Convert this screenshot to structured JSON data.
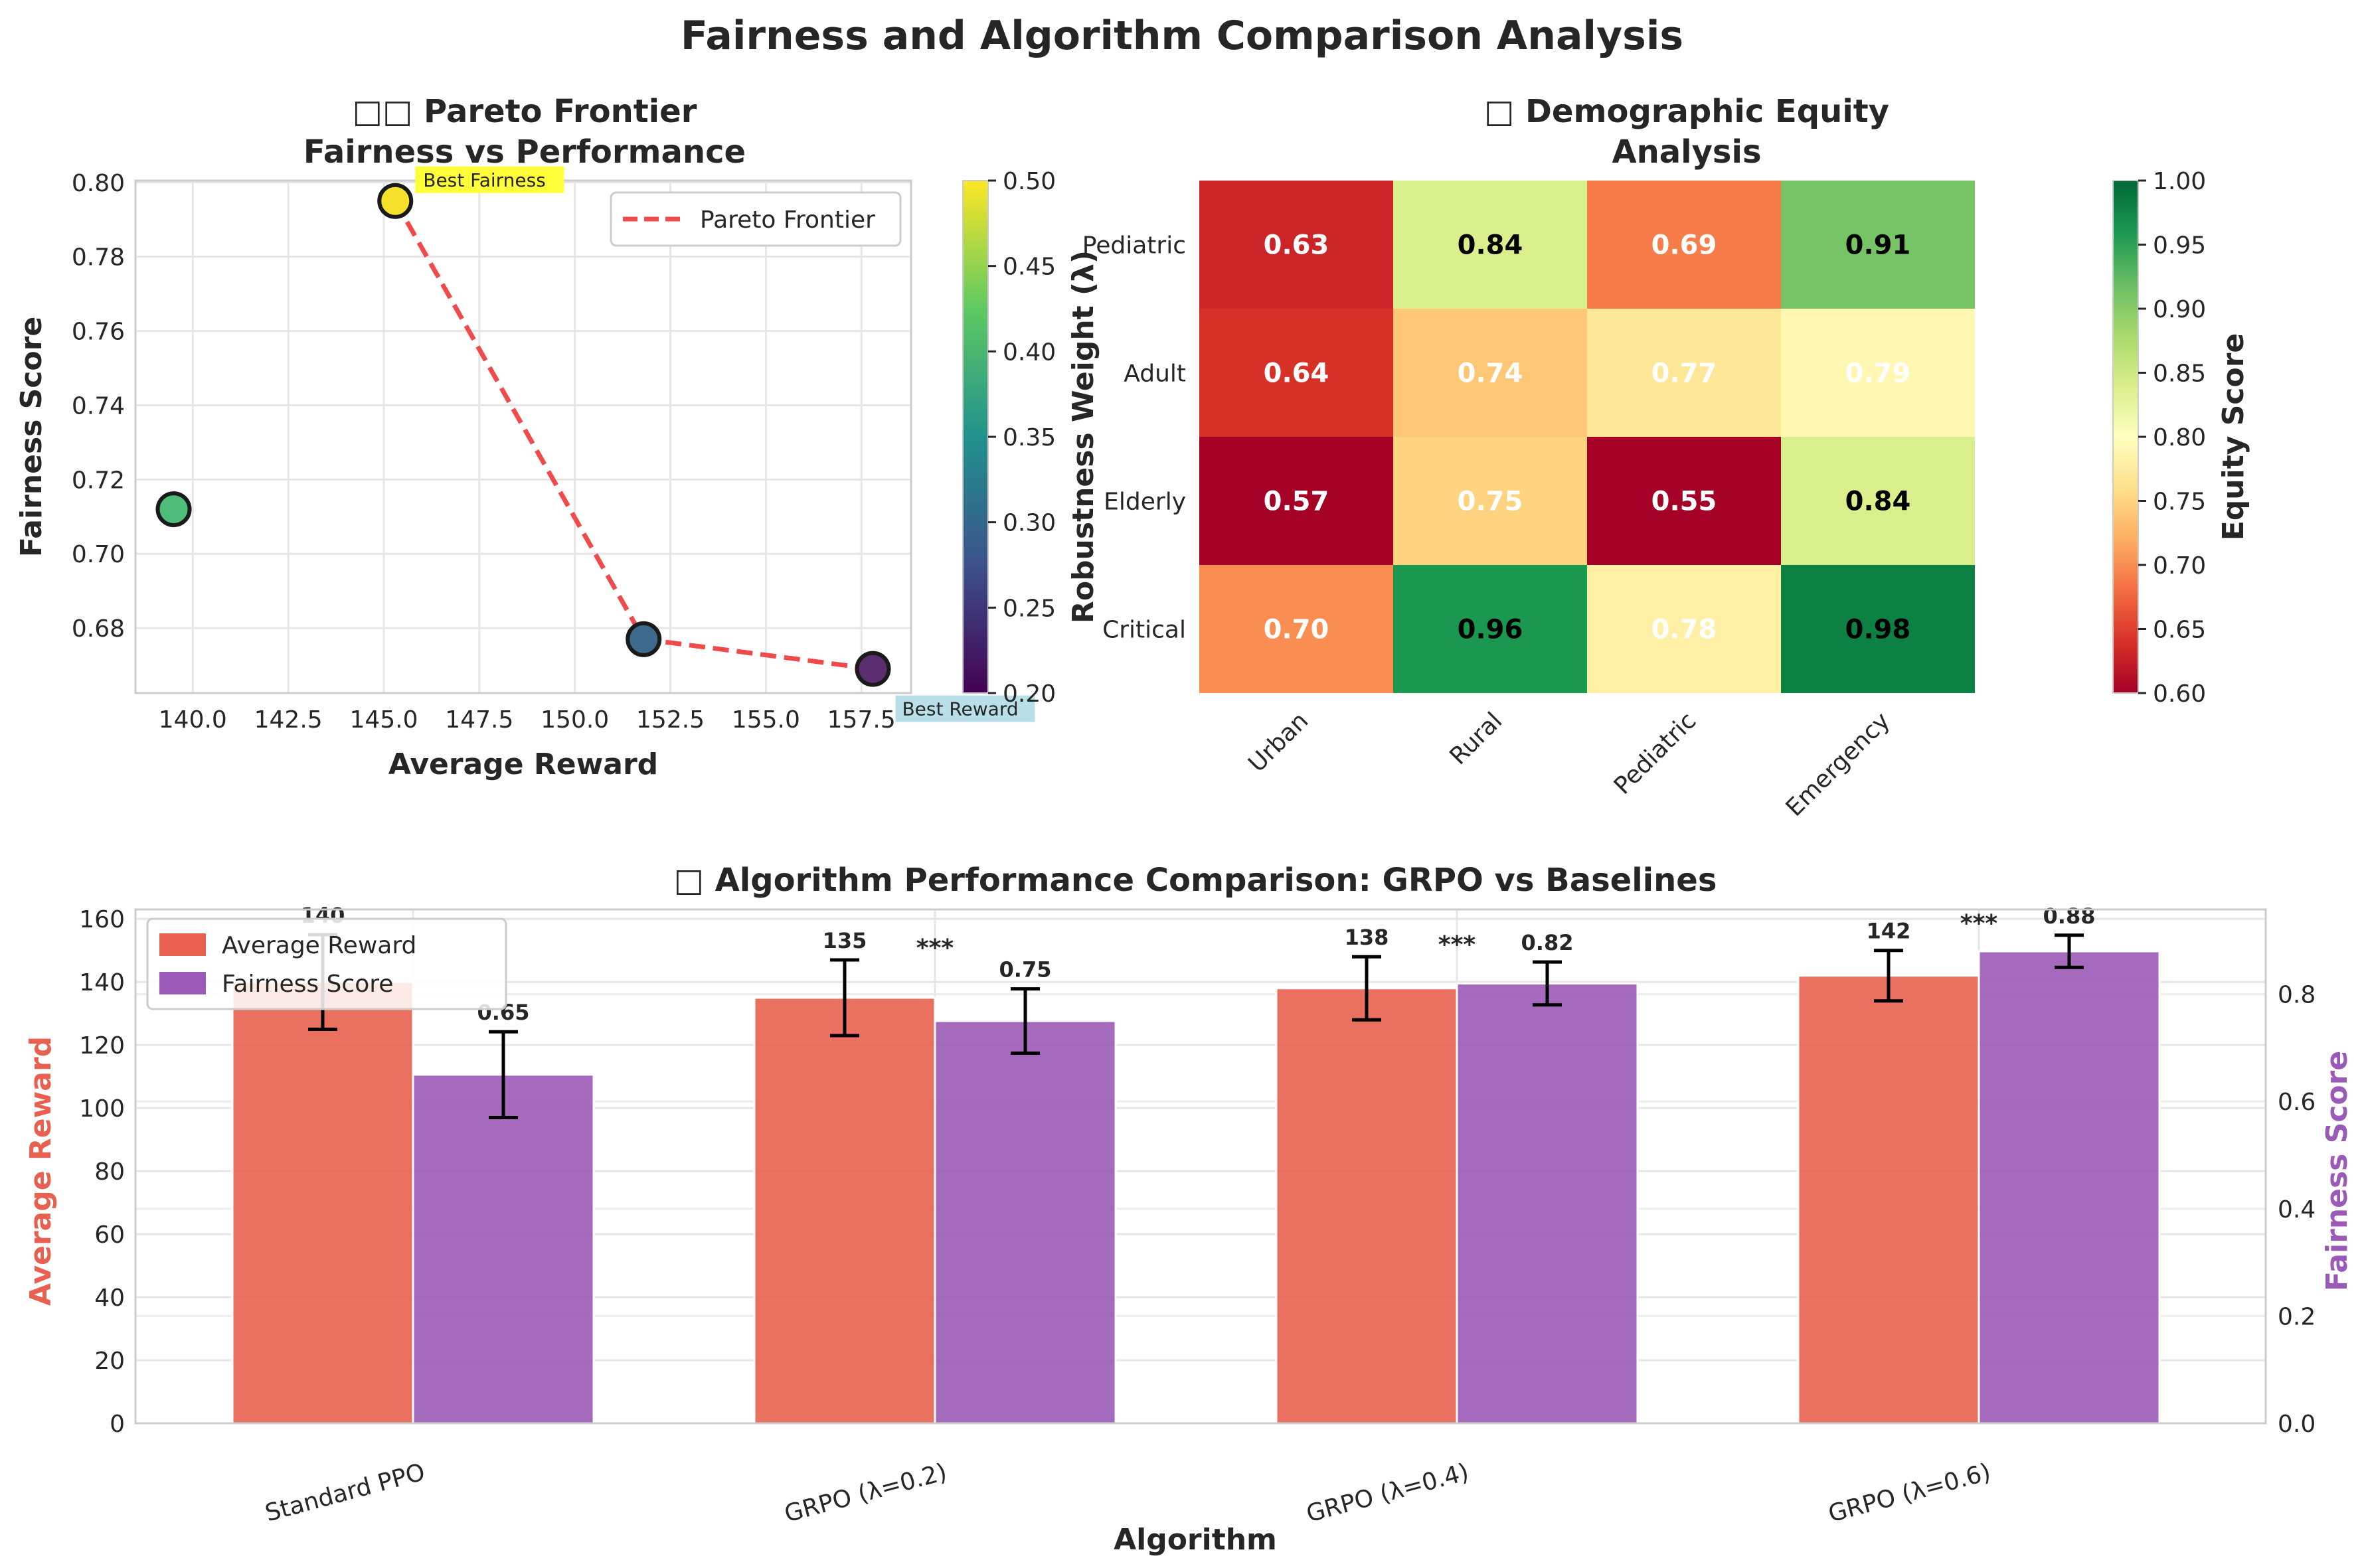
{
  "suptitle": "Fairness and Algorithm Comparison Analysis",
  "chart_data": [
    {
      "type": "scatter",
      "title_line1": "□□ Pareto Frontier",
      "title_line2": "Fairness vs Performance",
      "xlabel": "Average Reward",
      "ylabel": "Fairness Score",
      "xlim": [
        138.5,
        158.8
      ],
      "ylim": [
        0.6625,
        0.8005
      ],
      "xticks": [
        "140.0",
        "142.5",
        "145.0",
        "147.5",
        "150.0",
        "152.5",
        "155.0",
        "157.5"
      ],
      "yticks": [
        "0.68",
        "0.70",
        "0.72",
        "0.74",
        "0.76",
        "0.78",
        "0.80"
      ],
      "points": [
        {
          "x": 139.5,
          "y": 0.712,
          "lambda": 0.4,
          "color": "#4dbd79"
        },
        {
          "x": 145.3,
          "y": 0.795,
          "lambda": 0.5,
          "color": "#f5e12a"
        },
        {
          "x": 151.8,
          "y": 0.677,
          "lambda": 0.3,
          "color": "#3b6a8c"
        },
        {
          "x": 157.8,
          "y": 0.669,
          "lambda": 0.2,
          "color": "#5a2d6e"
        }
      ],
      "frontier": {
        "name": "Pareto Frontier",
        "x": [
          145.3,
          151.8,
          157.8
        ],
        "y": [
          0.795,
          0.677,
          0.669
        ],
        "color": "#f04a4a"
      },
      "annotations": [
        {
          "text": "Best Fairness",
          "x": 145.3,
          "y": 0.795,
          "bg": "#ffff3a"
        },
        {
          "text": "Best Reward",
          "x": 157.8,
          "y": 0.669,
          "bg": "#b9dfe9"
        }
      ],
      "colorbar": {
        "label": "Robustness Weight (λ)",
        "min": 0.2,
        "max": 0.5,
        "ticks": [
          "0.20",
          "0.25",
          "0.30",
          "0.35",
          "0.40",
          "0.45",
          "0.50"
        ]
      },
      "legend_placement": "top-right",
      "grid": true
    },
    {
      "type": "heatmap",
      "title_line1": "□ Demographic Equity",
      "title_line2": "Analysis",
      "rows": [
        "Pediatric",
        "Adult",
        "Elderly",
        "Critical"
      ],
      "cols": [
        "Urban",
        "Rural",
        "Pediatric",
        "Emergency"
      ],
      "values": [
        [
          0.63,
          0.84,
          0.69,
          0.91
        ],
        [
          0.64,
          0.74,
          0.77,
          0.79
        ],
        [
          0.57,
          0.75,
          0.55,
          0.84
        ],
        [
          0.7,
          0.96,
          0.78,
          0.98
        ]
      ],
      "labels": [
        [
          "0.63",
          "0.84",
          "0.69",
          "0.91"
        ],
        [
          "0.64",
          "0.74",
          "0.77",
          "0.79"
        ],
        [
          "0.57",
          "0.75",
          "0.55",
          "0.84"
        ],
        [
          "0.70",
          "0.96",
          "0.78",
          "0.98"
        ]
      ],
      "label_colors": [
        [
          "#ffffff",
          "#000000",
          "#ffffff",
          "#000000"
        ],
        [
          "#ffffff",
          "#ffffff",
          "#ffffff",
          "#ffffff"
        ],
        [
          "#ffffff",
          "#ffffff",
          "#ffffff",
          "#000000"
        ],
        [
          "#ffffff",
          "#000000",
          "#ffffff",
          "#000000"
        ]
      ],
      "colormap": "RdYlGn",
      "vmin": 0.6,
      "vmax": 1.0,
      "colorbar": {
        "label": "Equity Score",
        "ticks": [
          "0.60",
          "0.65",
          "0.70",
          "0.75",
          "0.80",
          "0.85",
          "0.90",
          "0.95",
          "1.00"
        ]
      }
    },
    {
      "type": "bar",
      "title": "□ Algorithm Performance Comparison: GRPO vs Baselines",
      "xlabel": "Algorithm",
      "ylabel_left": "Average Reward",
      "ylabel_right": "Fairness Score",
      "categories": [
        "Standard PPO",
        "GRPO (λ=0.2)",
        "GRPO (λ=0.4)",
        "GRPO (λ=0.6)"
      ],
      "ylim_left": [
        0,
        163
      ],
      "ylim_right": [
        0,
        0.958
      ],
      "yticks_left": [
        "0",
        "20",
        "40",
        "60",
        "80",
        "100",
        "120",
        "140",
        "160"
      ],
      "yticks_right": [
        "0.0",
        "0.2",
        "0.4",
        "0.6",
        "0.8"
      ],
      "series": [
        {
          "name": "Average Reward",
          "axis": "left",
          "color": "#e8604f",
          "values": [
            140,
            135,
            138,
            142
          ],
          "errors": [
            15,
            12,
            10,
            8
          ],
          "labels": [
            "140",
            "135",
            "138",
            "142"
          ]
        },
        {
          "name": "Fairness Score",
          "axis": "right",
          "color": "#9b5ab7",
          "values": [
            0.65,
            0.75,
            0.82,
            0.88
          ],
          "errors": [
            0.08,
            0.06,
            0.04,
            0.03
          ],
          "labels": [
            "0.65",
            "0.75",
            "0.82",
            "0.88"
          ]
        }
      ],
      "significance": [
        "",
        "***",
        "***",
        "***"
      ],
      "legend_placement": "top-left",
      "grid": true
    }
  ]
}
